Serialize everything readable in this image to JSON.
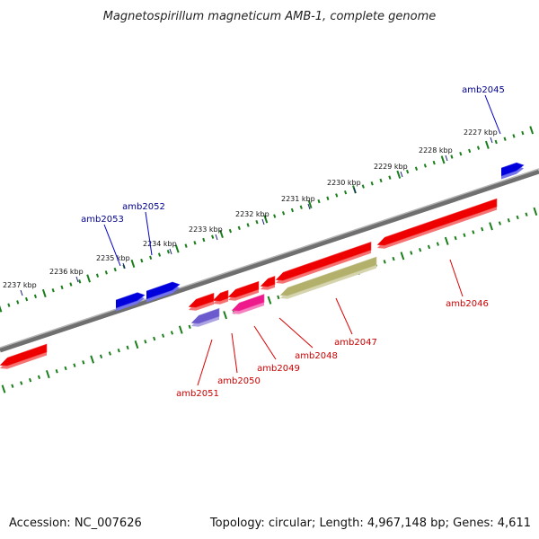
{
  "title": "Magnetospirillum magneticum AMB-1, complete genome",
  "footer": {
    "accession": "Accession: NC_007626",
    "summary": "Topology: circular; Length: 4,967,148 bp; Genes: 4,611"
  },
  "colors": {
    "forward_label": "#00008b",
    "reverse_label": "#cc0000",
    "tick": "#1a7f1a",
    "backbone": "#888888"
  },
  "kbp_ticks": [
    "2237 kbp",
    "2236 kbp",
    "2235 kbp",
    "2234 kbp",
    "2233 kbp",
    "2232 kbp",
    "2231 kbp",
    "2230 kbp",
    "2229 kbp",
    "2228 kbp",
    "2227 kbp"
  ],
  "genes": [
    {
      "name": "amb2045",
      "strand": "+",
      "color": "#0000dd"
    },
    {
      "name": "amb2046",
      "strand": "-",
      "color": "#ee0000"
    },
    {
      "name": "amb2047",
      "strand": "-",
      "color": "#b3b06b"
    },
    {
      "name": "amb2048",
      "strand": "-",
      "color": "#ee0000"
    },
    {
      "name": "amb2049",
      "strand": "-",
      "color": "#ee1a8c"
    },
    {
      "name": "amb2050",
      "strand": "-",
      "color": "#6a5acd"
    },
    {
      "name": "amb2051",
      "strand": "-",
      "color": "#ee0000"
    },
    {
      "name": "amb2052",
      "strand": "+",
      "color": "#0000dd"
    },
    {
      "name": "amb2053",
      "strand": "+",
      "color": "#0000dd"
    }
  ]
}
